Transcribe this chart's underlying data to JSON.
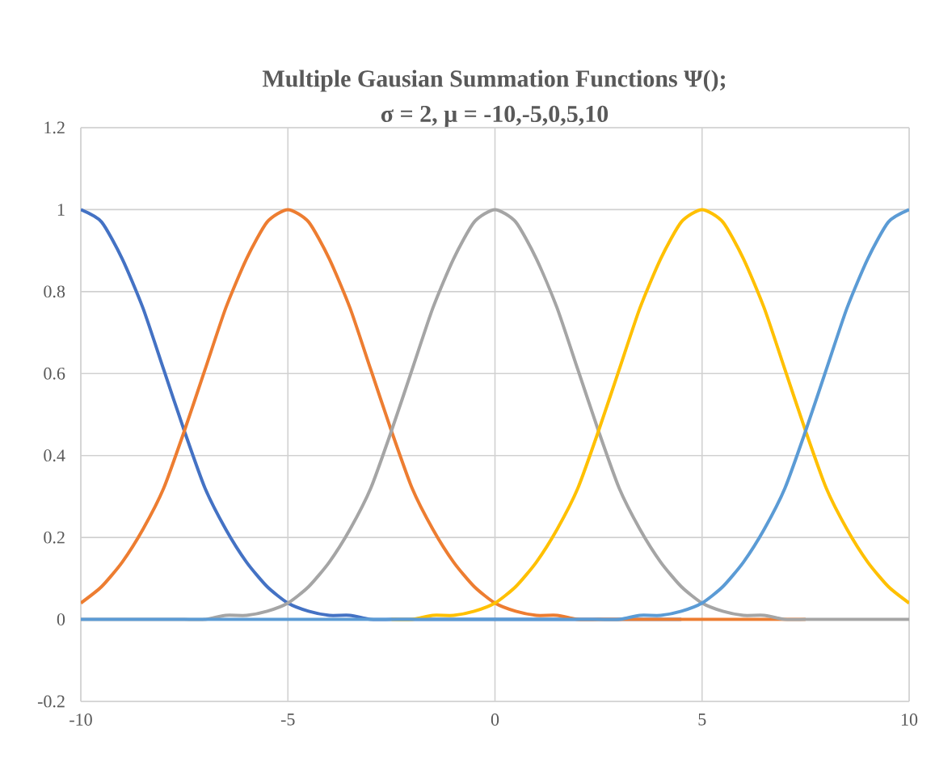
{
  "chart_data": {
    "type": "line",
    "title": "Multiple Gausian Summation Functions Ψ();",
    "subtitle": "σ = 2, μ = -10,-5,0,5,10",
    "x": [
      -10,
      -9.5,
      -9,
      -8.5,
      -8,
      -7.5,
      -7,
      -6.5,
      -6,
      -5.5,
      -5,
      -4.5,
      -4,
      -3.5,
      -3,
      -2.5,
      -2,
      -1.5,
      -1,
      -0.5,
      0,
      0.5,
      1,
      1.5,
      2,
      2.5,
      3,
      3.5,
      4,
      4.5,
      5,
      5.5,
      6,
      6.5,
      7,
      7.5,
      8,
      8.5,
      9,
      9.5,
      10
    ],
    "series": [
      {
        "color": "#4472c4",
        "values": [
          1,
          0.97,
          0.88,
          0.76,
          0.61,
          0.46,
          0.32,
          0.22,
          0.14,
          0.08,
          0.04,
          0.02,
          0.01,
          0.01,
          0,
          0,
          0,
          0,
          0,
          0,
          0,
          0,
          0,
          0,
          0,
          0,
          0,
          0,
          0,
          0,
          null,
          null,
          null,
          null,
          null,
          null,
          null,
          null,
          null,
          null,
          null
        ]
      },
      {
        "color": "#ed7d31",
        "values": [
          0.04,
          0.08,
          0.14,
          0.22,
          0.32,
          0.46,
          0.61,
          0.76,
          0.88,
          0.97,
          1,
          0.97,
          0.88,
          0.76,
          0.61,
          0.46,
          0.32,
          0.22,
          0.14,
          0.08,
          0.04,
          0.02,
          0.01,
          0.01,
          0,
          0,
          0,
          0,
          0,
          0,
          0,
          0,
          0,
          0,
          0,
          0,
          null,
          null,
          null,
          null,
          null
        ]
      },
      {
        "color": "#a5a5a5",
        "values": [
          0,
          0,
          0,
          0,
          0,
          0,
          0,
          0.01,
          0.01,
          0.02,
          0.04,
          0.08,
          0.14,
          0.22,
          0.32,
          0.46,
          0.61,
          0.76,
          0.88,
          0.97,
          1,
          0.97,
          0.88,
          0.76,
          0.61,
          0.46,
          0.32,
          0.22,
          0.14,
          0.08,
          0.04,
          0.02,
          0.01,
          0.01,
          0,
          0,
          0,
          0,
          0,
          0,
          0
        ]
      },
      {
        "color": "#ffc000",
        "values": [
          null,
          null,
          null,
          null,
          null,
          null,
          null,
          null,
          null,
          null,
          null,
          null,
          null,
          null,
          null,
          0,
          0,
          0.01,
          0.01,
          0.02,
          0.04,
          0.08,
          0.14,
          0.22,
          0.32,
          0.46,
          0.61,
          0.76,
          0.88,
          0.97,
          1,
          0.97,
          0.88,
          0.76,
          0.61,
          0.46,
          0.32,
          0.22,
          0.14,
          0.08,
          0.04
        ]
      },
      {
        "color": "#5b9bd5",
        "values": [
          0,
          0,
          0,
          0,
          0,
          0,
          0,
          0,
          0,
          0,
          0,
          0,
          0,
          0,
          0,
          0,
          0,
          0,
          0,
          0,
          0,
          0,
          0,
          0,
          0,
          0,
          0,
          0.01,
          0.01,
          0.02,
          0.04,
          0.08,
          0.14,
          0.22,
          0.32,
          0.46,
          0.61,
          0.76,
          0.88,
          0.97,
          1
        ]
      }
    ],
    "xlim": [
      -10,
      10
    ],
    "xticks": [
      -10,
      -5,
      0,
      5,
      10
    ],
    "ylim": [
      -0.2,
      1.2
    ],
    "yticks": [
      -0.2,
      0,
      0.2,
      0.4,
      0.6,
      0.8,
      1,
      1.2
    ],
    "grid": true
  }
}
